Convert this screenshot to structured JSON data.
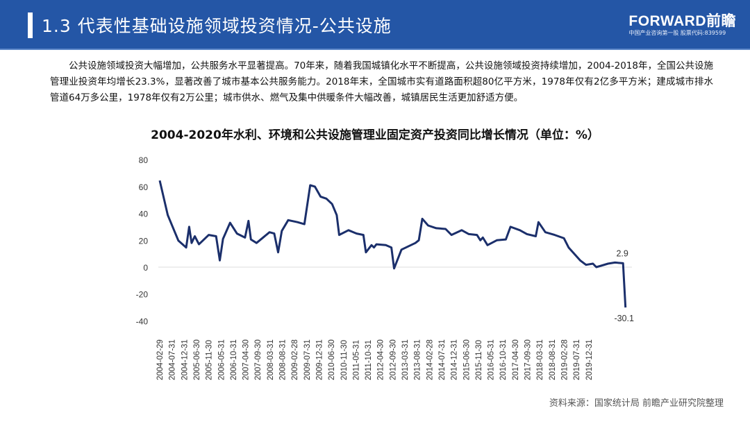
{
  "header": {
    "title": "1.3  代表性基础设施领域投资情况-公共设施",
    "logo_brand": "FORWARD前瞻",
    "logo_sub": "中国产业咨询第一股  股票代码:839599"
  },
  "paragraph": "公共设施领域投资大幅增加，公共服务水平显著提高。70年来，随着我国城镇化水平不断提高，公共设施领域投资持续增加，2004-2018年，全国公共设施管理业投资年均增长23.3%，显著改善了城市基本公共服务能力。2018年末，全国城市实有道路面积超80亿平方米，1978年仅有2亿多平方米；建成城市排水管道64万多公里，1978年仅有2万公里；城市供水、燃气及集中供暖条件大幅改善，城镇居民生活更加舒适方便。",
  "source": "资料来源：国家统计局 前瞻产业研究院整理",
  "colors": {
    "header": "#2456a6",
    "line": "#1b2f6b"
  },
  "chart_data": {
    "type": "line",
    "title": "2004-2020年水利、环境和公共设施管理业固定资产投资同比增长情况（单位：%）",
    "xlabel": "",
    "ylabel": "",
    "ylim": [
      -40,
      80
    ],
    "yticks": [
      "80",
      "60",
      "40",
      "20",
      "0",
      "-20",
      "-40"
    ],
    "ytick_values": [
      80,
      60,
      40,
      20,
      0,
      -20,
      -40
    ],
    "x_unit": "months since 2004-02",
    "xticks": [
      "2004-02-29",
      "2004-07-31",
      "2004-12-31",
      "2005-06-30",
      "2005-11-30",
      "2006-05-31",
      "2006-10-31",
      "2007-04-30",
      "2007-09-30",
      "2008-03-31",
      "2008-08-31",
      "2009-02-28",
      "2009-07-31",
      "2009-12-31",
      "2010-06-30",
      "2010-11-30",
      "2011-05-31",
      "2011-10-31",
      "2012-04-30",
      "2012-09-30",
      "2013-03-31",
      "2013-08-31",
      "2014-02-28",
      "2014-07-31",
      "2014-12-31",
      "2015-06-30",
      "2015-11-30",
      "2016-05-31",
      "2016-10-31",
      "2017-04-30",
      "2017-09-30",
      "2018-03-31",
      "2018-08-31",
      "2019-02-28",
      "2019-07-31",
      "2019-12-31"
    ],
    "series": [
      {
        "name": "同比增长",
        "points": [
          [
            0,
            64.5
          ],
          [
            3.3,
            38.7
          ],
          [
            7.6,
            19.8
          ],
          [
            10.8,
            14.6
          ],
          [
            12,
            30
          ],
          [
            13,
            18
          ],
          [
            14.3,
            23
          ],
          [
            16,
            17
          ],
          [
            20,
            24
          ],
          [
            23,
            23
          ],
          [
            24.5,
            5
          ],
          [
            25.8,
            21
          ],
          [
            28.7,
            33
          ],
          [
            31.5,
            25
          ],
          [
            34.8,
            22
          ],
          [
            36.2,
            34.4
          ],
          [
            37.2,
            20.6
          ],
          [
            39.5,
            18
          ],
          [
            44.8,
            26
          ],
          [
            46.7,
            25
          ],
          [
            48.3,
            11
          ],
          [
            49.8,
            27
          ],
          [
            52.4,
            35
          ],
          [
            56.2,
            33.5
          ],
          [
            59,
            32
          ],
          [
            61.4,
            61
          ],
          [
            63.3,
            60
          ],
          [
            65.6,
            52.5
          ],
          [
            68,
            51
          ],
          [
            70.3,
            47
          ],
          [
            72.2,
            38.7
          ],
          [
            73.2,
            24
          ],
          [
            77,
            27.5
          ],
          [
            80.3,
            25
          ],
          [
            83.1,
            24
          ],
          [
            84.1,
            11
          ],
          [
            86.4,
            16.4
          ],
          [
            87.4,
            14.6
          ],
          [
            88.4,
            17
          ],
          [
            92.2,
            16.4
          ],
          [
            94.5,
            14.6
          ],
          [
            95.6,
            -1
          ],
          [
            98.6,
            13
          ],
          [
            104.3,
            18
          ],
          [
            105.7,
            20
          ],
          [
            107.1,
            36
          ],
          [
            109.5,
            31
          ],
          [
            112.8,
            29
          ],
          [
            116.6,
            28.4
          ],
          [
            119,
            24
          ],
          [
            123.2,
            27.5
          ],
          [
            126.1,
            24.6
          ],
          [
            129.4,
            24
          ],
          [
            130.8,
            20
          ],
          [
            131.8,
            22
          ],
          [
            133.7,
            16.4
          ],
          [
            137.5,
            20
          ],
          [
            141.2,
            20.6
          ],
          [
            143.1,
            30
          ],
          [
            146.9,
            27.5
          ],
          [
            149.8,
            24.6
          ],
          [
            153.4,
            23
          ],
          [
            154.5,
            33.5
          ],
          [
            157.3,
            26
          ],
          [
            161.1,
            24
          ],
          [
            164.9,
            21.5
          ],
          [
            166.8,
            14.6
          ],
          [
            171.5,
            5
          ],
          [
            173.9,
            1.7
          ],
          [
            176.7,
            2.6
          ],
          [
            178.1,
            0
          ],
          [
            182.9,
            2.6
          ],
          [
            185.7,
            3.4
          ],
          [
            189,
            2.9
          ],
          [
            190,
            -30.1
          ]
        ]
      }
    ],
    "annotations": [
      {
        "x": 189,
        "y": 2.9,
        "label": "2.9"
      },
      {
        "x": 190,
        "y": -30.1,
        "label": "-30.1"
      }
    ],
    "grid": false,
    "zero_line": true,
    "legend": "none"
  }
}
